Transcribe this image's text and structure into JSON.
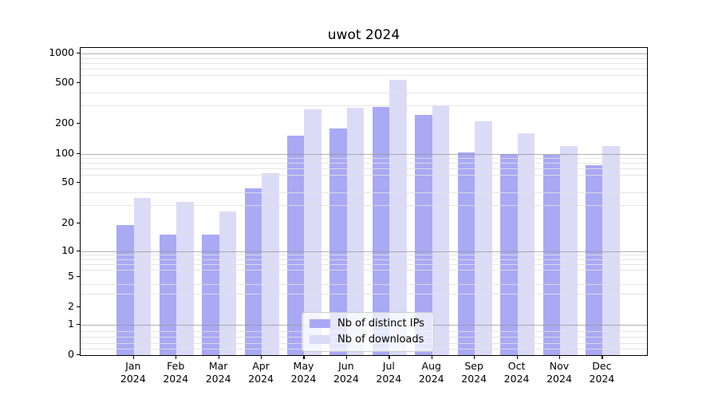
{
  "chart_data": {
    "type": "bar",
    "title": "uwot 2024",
    "categories": [
      "Jan 2024",
      "Feb 2024",
      "Mar 2024",
      "Apr 2024",
      "May 2024",
      "Jun 2024",
      "Jul 2024",
      "Aug 2024",
      "Sep 2024",
      "Oct 2024",
      "Nov 2024",
      "Dec 2024"
    ],
    "series": [
      {
        "name": "Nb of distinct IPs",
        "color": "#a9a9f4",
        "values": [
          19,
          15,
          15,
          44,
          150,
          178,
          290,
          240,
          102,
          100,
          98,
          75
        ]
      },
      {
        "name": "Nb of downloads",
        "color": "#dbdbf8",
        "values": [
          35,
          32,
          26,
          62,
          275,
          283,
          540,
          300,
          210,
          160,
          120,
          120
        ]
      }
    ],
    "xlabel": "",
    "ylabel": "",
    "yscale": "symlog",
    "ylim": [
      0,
      1150
    ],
    "yticks": [
      0,
      1,
      2,
      5,
      10,
      20,
      50,
      100,
      200,
      500,
      1000
    ],
    "major_gridlines": [
      1,
      10,
      100,
      1000
    ],
    "minor_gridlines": [
      0.2,
      0.4,
      0.6,
      0.8,
      3,
      4,
      6,
      7,
      8,
      9,
      30,
      40,
      60,
      70,
      80,
      90,
      300,
      400,
      600,
      700,
      800,
      900
    ],
    "grid": true,
    "legend_location": "lower center (inside axes)"
  },
  "colors": {
    "background": "#ffffff",
    "spine": "#000000",
    "major_grid": "#b0b0b0",
    "minor_grid": "#e8e8e8",
    "legend_border": "#cccccc"
  }
}
